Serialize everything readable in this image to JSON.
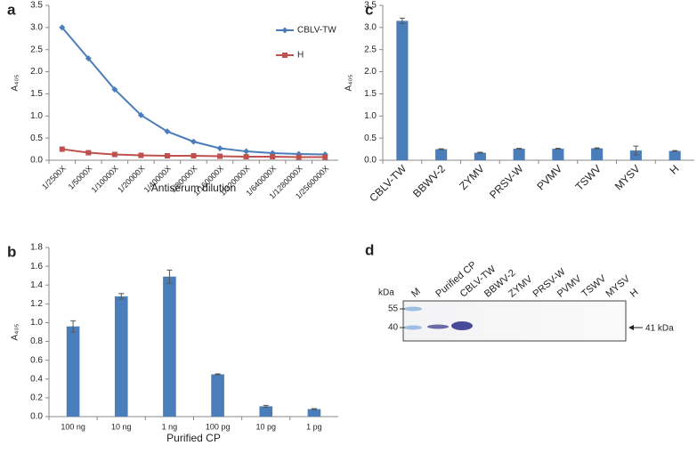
{
  "chart_data": [
    {
      "type": "line",
      "panel": "a",
      "x_label": "Antiserum dilution",
      "y_label": "A₄₀₅",
      "categories": [
        "1/2500X",
        "1/5000X",
        "1/10000X",
        "1/20000X",
        "1/40000X",
        "1/80000X",
        "1/160000X",
        "1/320000X",
        "1/640000X",
        "1/1280000X",
        "1/2560000X"
      ],
      "series": [
        {
          "name": "CBLV-TW",
          "color": "#4a7ebb",
          "marker": "diamond",
          "values": [
            3.0,
            2.3,
            1.6,
            1.02,
            0.65,
            0.42,
            0.27,
            0.2,
            0.16,
            0.14,
            0.13
          ]
        },
        {
          "name": "H",
          "color": "#c0504d",
          "marker": "square",
          "values": [
            0.25,
            0.17,
            0.13,
            0.11,
            0.1,
            0.1,
            0.09,
            0.08,
            0.08,
            0.07,
            0.07
          ]
        }
      ],
      "ylim": [
        0,
        3.5
      ],
      "yticks": [
        {
          "value": 0,
          "label": "0.0"
        },
        0.5,
        {
          "value": 1,
          "label": "1.0"
        },
        1.5,
        {
          "value": 2,
          "label": "2.0"
        },
        2.5,
        {
          "value": 3,
          "label": "3.0"
        },
        3.5
      ],
      "legend": "upper right"
    },
    {
      "type": "bar",
      "panel": "b",
      "x_label": "Purified CP",
      "y_label": "A₄₀₅",
      "color": "#4a7ebb",
      "categories": [
        "100 ng",
        "10 ng",
        "1 ng",
        "100 pg",
        "10 pg",
        "1 pg"
      ],
      "values": [
        0.96,
        1.28,
        1.49,
        0.45,
        0.11,
        0.08
      ],
      "errors": [
        0.06,
        0.03,
        0.07,
        0.005,
        0.01,
        0.005
      ],
      "ylim": [
        0,
        1.8
      ],
      "yticks": [
        {
          "value": 0,
          "label": "0.0"
        },
        0.2,
        0.4,
        0.6,
        0.8,
        {
          "value": 1,
          "label": "1.0"
        },
        1.2,
        1.4,
        1.6,
        1.8
      ]
    },
    {
      "type": "bar",
      "panel": "c",
      "y_label": "A₄₀₅",
      "color": "#4a7ebb",
      "categories": [
        "CBLV-TW",
        "BBWV-2",
        "ZYMV",
        "PRSV-W",
        "PVMV",
        "TSWV",
        "MYSV",
        "H"
      ],
      "values": [
        3.15,
        0.25,
        0.17,
        0.26,
        0.26,
        0.27,
        0.22,
        0.21
      ],
      "errors": [
        0.06,
        0.01,
        0.01,
        0.01,
        0.01,
        0.01,
        0.1,
        0.01
      ],
      "ylim": [
        0,
        3.5
      ],
      "yticks": [
        {
          "value": 0,
          "label": "0.0"
        },
        0.5,
        {
          "value": 1,
          "label": "1.0"
        },
        1.5,
        {
          "value": 2,
          "label": "2.0"
        },
        2.5,
        {
          "value": 3,
          "label": "3.0"
        },
        3.5
      ]
    }
  ],
  "blot": {
    "panel": "d",
    "unit": "kDa",
    "markers": [
      "55",
      "40"
    ],
    "arrow_label": "41 kDa",
    "lanes": [
      "M",
      "Purified CP",
      "CBLV-TW",
      "BBWV-2",
      "ZYMV",
      "PRSV-W",
      "PVMV",
      "TSWV",
      "MYSV",
      "H"
    ]
  }
}
